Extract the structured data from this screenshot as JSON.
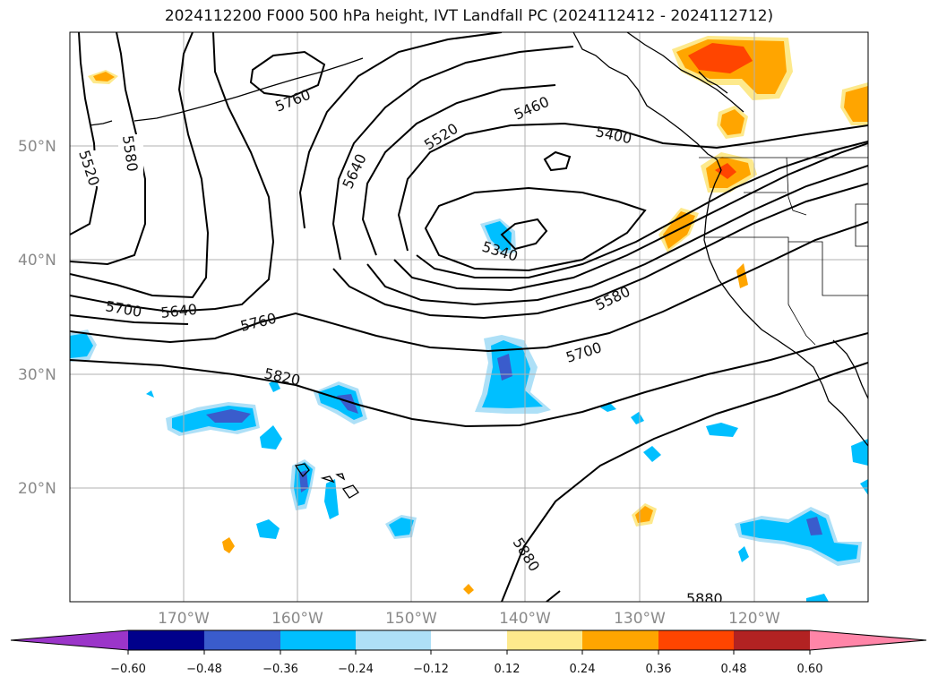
{
  "title": "2024112200 F000 500 hPa height, IVT Landfall PC (2024112412 - 2024112712)",
  "map": {
    "lon_labels": [
      "170°W",
      "160°W",
      "150°W",
      "140°W",
      "130°W",
      "120°W"
    ],
    "lat_labels": [
      "50°N",
      "40°N",
      "30°N",
      "20°N"
    ],
    "contour_labels": [
      "5520",
      "5580",
      "5760",
      "5640",
      "5460",
      "5520",
      "5400",
      "5340",
      "5700",
      "5640",
      "5760",
      "5820",
      "5580",
      "5700",
      "5880",
      "5880"
    ]
  },
  "colorbar": {
    "tick_labels": [
      "−0.60",
      "−0.48",
      "−0.36",
      "−0.24",
      "−0.12",
      "0.12",
      "0.24",
      "0.36",
      "0.48",
      "0.60"
    ],
    "colors": [
      "#9b35c9",
      "#00008b",
      "#3a5ccc",
      "#00bfff",
      "#aee0f7",
      "#ffffff",
      "#fde98c",
      "#ffa500",
      "#ff4500",
      "#b22222",
      "#ff85a8"
    ]
  },
  "fill_colors": {
    "blue_light": "#aee0f7",
    "blue": "#00bfff",
    "blue_dark": "#3a5ccc",
    "yellow": "#fde98c",
    "orange": "#ffa500",
    "red": "#ff4500"
  }
}
